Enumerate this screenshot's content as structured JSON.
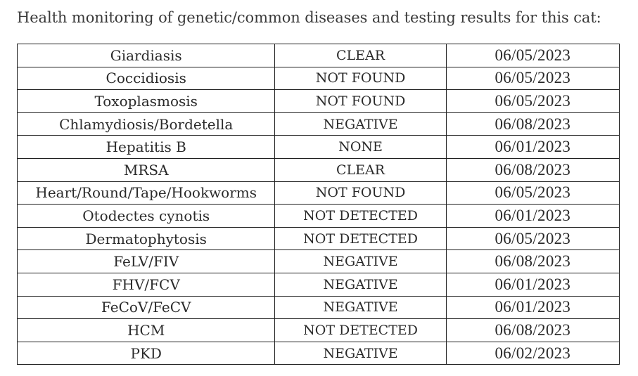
{
  "heading": "Health monitoring of genetic/common diseases and testing results for this cat:",
  "rows": [
    {
      "disease": "Giardiasis",
      "result": "CLEAR",
      "date": "06/05/2023"
    },
    {
      "disease": "Coccidiosis",
      "result": "NOT FOUND",
      "date": "06/05/2023"
    },
    {
      "disease": "Toxoplasmosis",
      "result": "NOT FOUND",
      "date": "06/05/2023"
    },
    {
      "disease": "Chlamydiosis/Bordetella",
      "result": "NEGATIVE",
      "date": "06/08/2023"
    },
    {
      "disease": "Hepatitis B",
      "result": "NONE",
      "date": "06/01/2023"
    },
    {
      "disease": "MRSA",
      "result": "CLEAR",
      "date": "06/08/2023"
    },
    {
      "disease": "Heart/Round/Tape/Hookworms",
      "result": "NOT FOUND",
      "date": "06/05/2023"
    },
    {
      "disease": "Otodectes cynotis",
      "result": "NOT DETECTED",
      "date": "06/01/2023"
    },
    {
      "disease": "Dermatophytosis",
      "result": "NOT DETECTED",
      "date": "06/05/2023"
    },
    {
      "disease": "FeLV/FIV",
      "result": "NEGATIVE",
      "date": "06/08/2023"
    },
    {
      "disease": "FHV/FCV",
      "result": "NEGATIVE",
      "date": "06/01/2023"
    },
    {
      "disease": "FeCoV/FeCV",
      "result": "NEGATIVE",
      "date": "06/01/2023"
    },
    {
      "disease": "HCM",
      "result": "NOT DETECTED",
      "date": "06/08/2023"
    },
    {
      "disease": "PKD",
      "result": "NEGATIVE",
      "date": "06/02/2023"
    }
  ]
}
